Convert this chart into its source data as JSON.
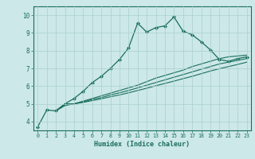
{
  "xlabel": "Humidex (Indice chaleur)",
  "bg_color": "#cce8e8",
  "grid_color": "#aacfcf",
  "line_color": "#1a6e5e",
  "xlim": [
    -0.5,
    23.5
  ],
  "ylim": [
    3.5,
    10.5
  ],
  "yticks": [
    4,
    5,
    6,
    7,
    8,
    9,
    10
  ],
  "xticks": [
    0,
    1,
    2,
    3,
    4,
    5,
    6,
    7,
    8,
    9,
    10,
    11,
    12,
    13,
    14,
    15,
    16,
    17,
    18,
    19,
    20,
    21,
    22,
    23
  ],
  "curve1_x": [
    0,
    1,
    2,
    3,
    4,
    5,
    6,
    7,
    8,
    9,
    10,
    11,
    12,
    13,
    14,
    15,
    16,
    17,
    18,
    19,
    20,
    21,
    22,
    23
  ],
  "curve1_y": [
    3.7,
    4.65,
    4.6,
    5.0,
    5.3,
    5.7,
    6.2,
    6.55,
    7.0,
    7.5,
    8.15,
    9.55,
    9.05,
    9.3,
    9.4,
    9.9,
    9.1,
    8.9,
    8.5,
    8.05,
    7.5,
    7.4,
    7.55,
    7.65
  ],
  "curve2_x": [
    2,
    3,
    4,
    5,
    6,
    7,
    8,
    9,
    10,
    11,
    12,
    13,
    14,
    15,
    16,
    17,
    18,
    19,
    20,
    21,
    22,
    23
  ],
  "curve2_y": [
    4.6,
    5.0,
    5.0,
    5.15,
    5.3,
    5.45,
    5.6,
    5.75,
    5.9,
    6.05,
    6.25,
    6.45,
    6.6,
    6.75,
    6.9,
    7.1,
    7.25,
    7.4,
    7.55,
    7.65,
    7.7,
    7.75
  ],
  "curve3_x": [
    2,
    3,
    4,
    5,
    6,
    7,
    8,
    9,
    10,
    11,
    12,
    13,
    14,
    15,
    16,
    17,
    18,
    19,
    20,
    21,
    22,
    23
  ],
  "curve3_y": [
    4.6,
    4.95,
    5.0,
    5.1,
    5.25,
    5.35,
    5.5,
    5.62,
    5.75,
    5.9,
    6.05,
    6.2,
    6.35,
    6.5,
    6.65,
    6.8,
    6.95,
    7.1,
    7.25,
    7.35,
    7.45,
    7.55
  ],
  "curve4_x": [
    2,
    3,
    4,
    5,
    6,
    7,
    8,
    9,
    10,
    11,
    12,
    13,
    14,
    15,
    16,
    17,
    18,
    19,
    20,
    21,
    22,
    23
  ],
  "curve4_y": [
    4.6,
    4.9,
    5.0,
    5.08,
    5.18,
    5.28,
    5.4,
    5.5,
    5.62,
    5.75,
    5.88,
    6.02,
    6.15,
    6.28,
    6.42,
    6.55,
    6.7,
    6.85,
    6.98,
    7.1,
    7.22,
    7.35
  ]
}
